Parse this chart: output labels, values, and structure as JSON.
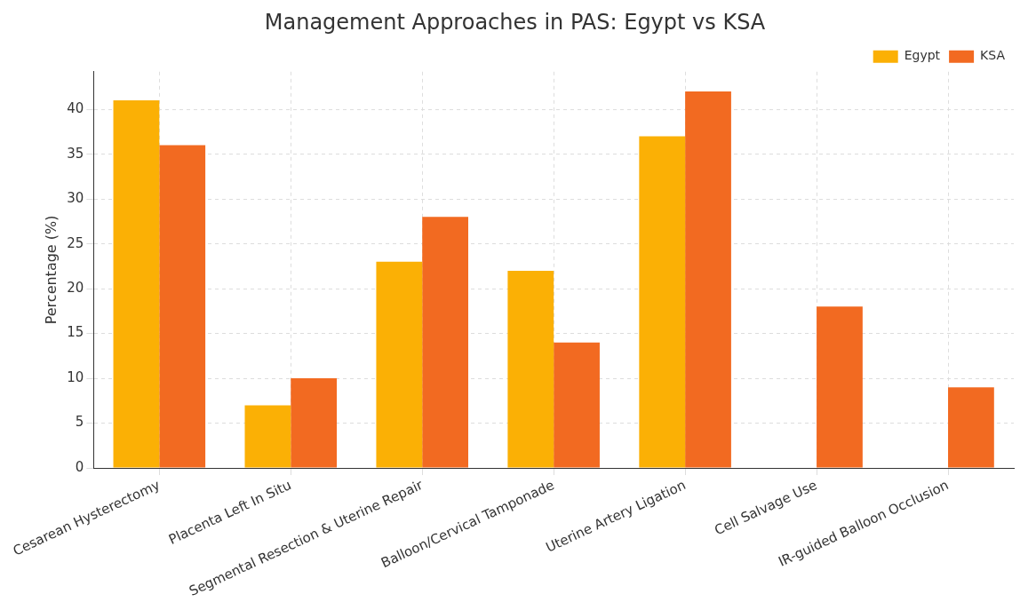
{
  "chart_data": {
    "type": "bar",
    "title": "Management Approaches in PAS: Egypt vs KSA",
    "ylabel": "Percentage (%)",
    "categories": [
      "Cesarean Hysterectomy",
      "Placenta Left In Situ",
      "Segmental Resection & Uterine Repair",
      "Balloon/Cervical Tamponade",
      "Uterine Artery Ligation",
      "Cell Salvage Use",
      "IR-guided Balloon Occlusion"
    ],
    "series": [
      {
        "name": "Egypt",
        "color": "#fbb005",
        "values": [
          41,
          7,
          23,
          22,
          37,
          null,
          null
        ]
      },
      {
        "name": "KSA",
        "color": "#f26a21",
        "values": [
          36,
          10,
          28,
          14,
          42,
          18,
          9
        ]
      }
    ],
    "ylim": [
      0,
      44.2
    ],
    "yticks": [
      0,
      5,
      10,
      15,
      20,
      25,
      30,
      35,
      40
    ],
    "grid": true,
    "legend": "top right"
  }
}
